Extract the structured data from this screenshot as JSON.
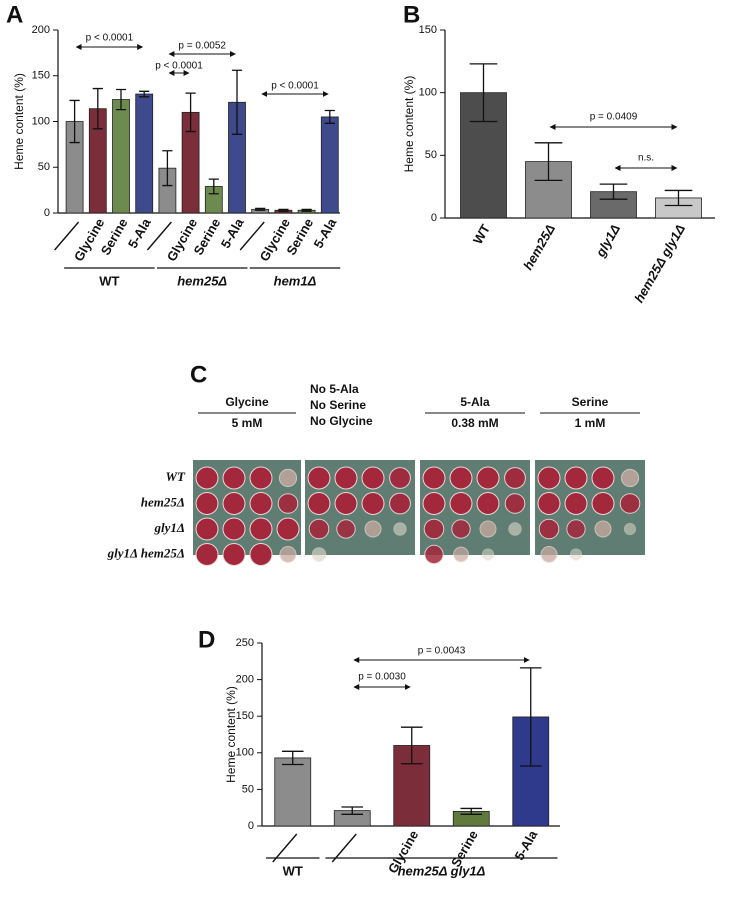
{
  "chart_data": [
    {
      "type": "bar",
      "panel_label": "A",
      "ylabel": "Heme content (%)",
      "categories": [
        null,
        "Glycine",
        "Serine",
        "5-Ala",
        null,
        "Glycine",
        "Serine",
        "5-Ala",
        null,
        "Glycine",
        "Serine",
        "5-Ala"
      ],
      "values": [
        100,
        114,
        124,
        130,
        49,
        110,
        29,
        121,
        4,
        3,
        3,
        105
      ],
      "errors": [
        23,
        22,
        11,
        3,
        19,
        21,
        8,
        35,
        1,
        1,
        1,
        7
      ],
      "colors": [
        "#8c8c8c",
        "#7b2e3a",
        "#6e8b4f",
        "#3e4a8c",
        "#8c8c8c",
        "#7b2e3a",
        "#6e8b4f",
        "#3e4a8c",
        "#8c8c8c",
        "#7b2e3a",
        "#6e8b4f",
        "#3e4a8c"
      ],
      "groups": [
        {
          "name": "WT",
          "count": 4
        },
        {
          "name": "hem25Δ",
          "count": 4
        },
        {
          "name": "hem1Δ",
          "count": 4
        }
      ],
      "annotations": [
        {
          "text": "p < 0.0001",
          "from": 0,
          "to": 3
        },
        {
          "text": "p = 0.0052",
          "from": 4,
          "to": 7
        },
        {
          "text": "p < 0.0001",
          "from": 4,
          "to": 5
        },
        {
          "text": "p < 0.0001",
          "from": 8,
          "to": 11
        }
      ],
      "ylim": [
        0,
        200
      ],
      "yticks": [
        0,
        50,
        100,
        150,
        200
      ]
    },
    {
      "type": "bar",
      "panel_label": "B",
      "ylabel": "Heme content (%)",
      "categories": [
        "WT",
        "hem25Δ",
        "gly1Δ",
        "hem25Δ gly1Δ"
      ],
      "values": [
        100,
        45,
        21,
        16
      ],
      "errors": [
        23,
        15,
        6,
        6
      ],
      "colors": [
        "#4d4d4d",
        "#8c8c8c",
        "#6a6a6a",
        "#c8c8c8"
      ],
      "annotations": [
        {
          "text": "p = 0.0409",
          "from": 1,
          "to": 3
        },
        {
          "text": "n.s.",
          "from": 2,
          "to": 3
        }
      ],
      "ylim": [
        0,
        150
      ],
      "yticks": [
        0,
        50,
        100,
        150
      ]
    },
    {
      "type": "bar",
      "panel_label": "D",
      "ylabel": "Heme content (%)",
      "categories": [
        null,
        null,
        "Glycine",
        "Serine",
        "5-Ala"
      ],
      "values": [
        93,
        21,
        110,
        20,
        149
      ],
      "errors": [
        9,
        5,
        25,
        4,
        67
      ],
      "colors": [
        "#8c8c8c",
        "#8c8c8c",
        "#7b2e3a",
        "#5f7a3a",
        "#2f3a8c"
      ],
      "groups": [
        {
          "name": "WT",
          "count": 1
        },
        {
          "name": "hem25Δ gly1Δ",
          "count": 4
        }
      ],
      "annotations": [
        {
          "text": "p = 0.0030",
          "from": 1,
          "to": 2
        },
        {
          "text": "p = 0.0043",
          "from": 1,
          "to": 4
        }
      ],
      "ylim": [
        0,
        250
      ],
      "yticks": [
        0,
        50,
        100,
        150,
        200,
        250
      ]
    }
  ],
  "panel_c": {
    "panel_label": "C",
    "plates": [
      {
        "lines": [
          "Glycine",
          "5 mM"
        ]
      },
      {
        "lines": [
          "No 5-Ala",
          "No Serine",
          "No Glycine"
        ]
      },
      {
        "lines": [
          "5-Ala",
          "0.38 mM"
        ]
      },
      {
        "lines": [
          "Serine",
          "1 mM"
        ]
      }
    ],
    "rows": [
      "WT",
      "hem25Δ",
      "gly1Δ",
      "gly1Δ hem25Δ"
    ]
  }
}
